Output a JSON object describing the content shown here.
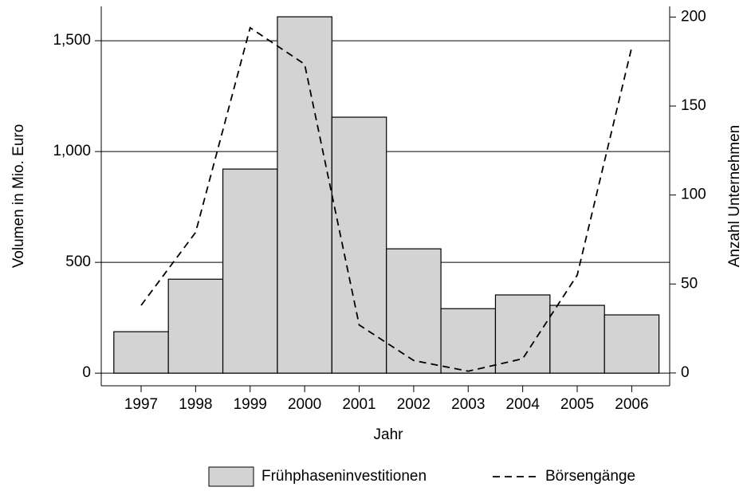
{
  "chart_data": {
    "type": "bar_line",
    "x_label": "Jahr",
    "y_label": "Volumen in Mio. Euro",
    "y2_label": "Anzahl Unternehmen",
    "categories": [
      "1997",
      "1998",
      "1999",
      "2000",
      "2001",
      "2002",
      "2003",
      "2004",
      "2005",
      "2006"
    ],
    "series": [
      {
        "name": "Frühphaseninvestitionen",
        "type": "bar",
        "color": "#d3d3d3",
        "values": [
          187,
          424,
          921,
          1608,
          1155,
          561,
          291,
          353,
          306,
          263
        ]
      },
      {
        "name": "Börsengänge",
        "type": "line",
        "axis": "y2",
        "color": "#000000",
        "dashed": true,
        "values": [
          38,
          79,
          194,
          173.5,
          27,
          7,
          1,
          8,
          55,
          183
        ]
      }
    ],
    "ylim": [
      -57,
      1655
    ],
    "yticks": [
      0,
      500,
      {
        "value": 1000,
        "label": "1,000"
      },
      {
        "value": 1500,
        "label": "1,500"
      }
    ],
    "y2lim": [
      -7.2,
      206
    ],
    "y2ticks": [
      0,
      50,
      100,
      150,
      200
    ],
    "grid": true,
    "legend": "bottom"
  }
}
